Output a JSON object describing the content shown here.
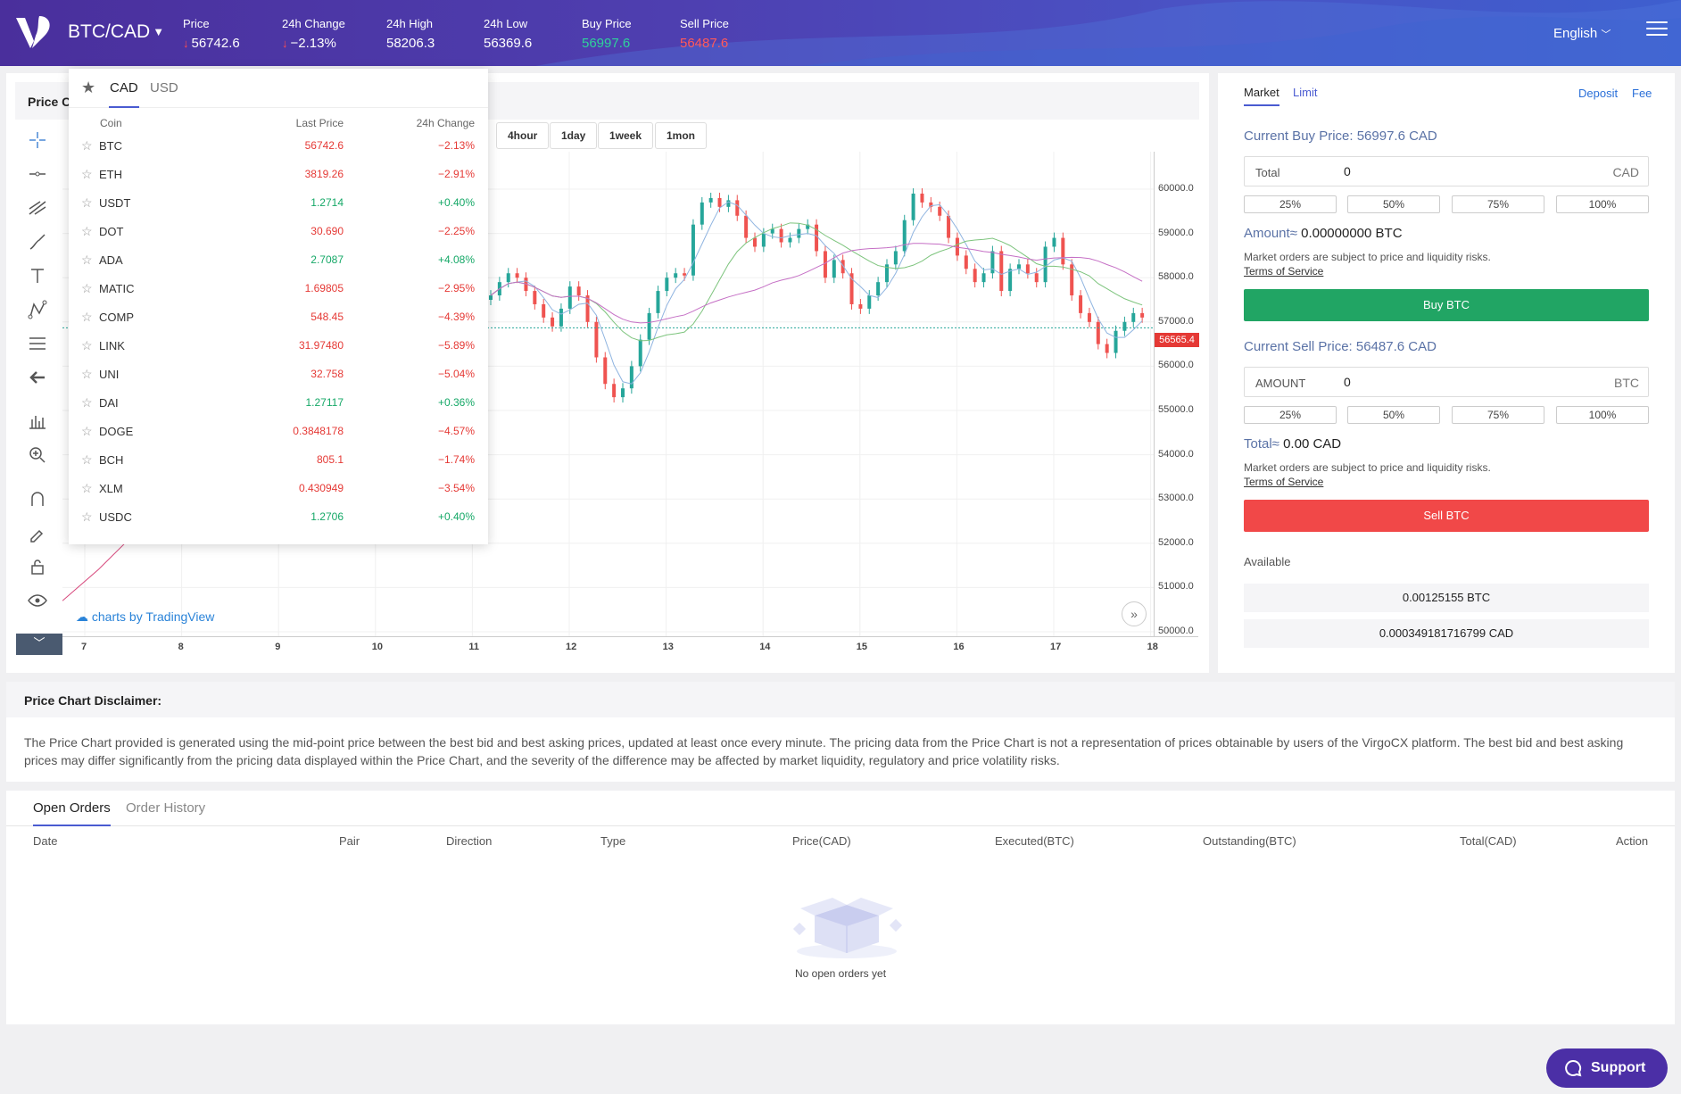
{
  "header": {
    "pair": "BTC/CAD",
    "stats": [
      {
        "label": "Price",
        "value": "56742.6",
        "arrow": true,
        "color": "white"
      },
      {
        "label": "24h Change",
        "value": "−2.13%",
        "arrow": true,
        "color": "white"
      },
      {
        "label": "24h High",
        "value": "58206.3",
        "arrow": false,
        "color": "white"
      },
      {
        "label": "24h Low",
        "value": "56369.6",
        "arrow": false,
        "color": "white"
      },
      {
        "label": "Buy Price",
        "value": "56997.6",
        "arrow": false,
        "color": "green"
      },
      {
        "label": "Sell Price",
        "value": "56487.6",
        "arrow": false,
        "color": "red"
      }
    ],
    "language": "English"
  },
  "chart": {
    "title": "Price C",
    "intervals": [
      "4hour",
      "1day",
      "1week",
      "1mon"
    ],
    "current_price_tag": "56565.4",
    "tradingview_label": "charts by TradingView"
  },
  "chart_data": {
    "type": "candlestick",
    "x_ticks": [
      "7",
      "8",
      "9",
      "10",
      "11",
      "12",
      "13",
      "14",
      "15",
      "16",
      "17",
      "18"
    ],
    "y_ticks": [
      "60000.0",
      "59000.0",
      "58000.0",
      "57000.0",
      "56000.0",
      "55000.0",
      "54000.0",
      "53000.0",
      "52000.0",
      "51000.0",
      "50000.0"
    ],
    "ylim": [
      50000,
      60000
    ],
    "current_price": 56565.4,
    "close_series": [
      57600,
      57900,
      58100,
      58000,
      57700,
      57400,
      57100,
      56900,
      57300,
      57800,
      57600,
      57000,
      56200,
      55600,
      55300,
      55500,
      56000,
      56600,
      57200,
      57700,
      58000,
      58100,
      58050,
      59200,
      59700,
      59800,
      59600,
      59750,
      59400,
      58900,
      58700,
      59000,
      59100,
      58800,
      58900,
      59100,
      59200,
      58600,
      58000,
      58400,
      58100,
      57400,
      57300,
      57600,
      57900,
      58300,
      58600,
      59300,
      59900,
      59700,
      59600,
      59400,
      58900,
      58500,
      58200,
      57900,
      58100,
      58600,
      57700,
      58200,
      58300,
      58100,
      57900,
      58700,
      58900,
      58300,
      57600,
      57200,
      57000,
      56500,
      56300,
      56800,
      57000,
      57200,
      57100
    ]
  },
  "coin_list": {
    "tabs": [
      "CAD",
      "USD"
    ],
    "active_tab": "CAD",
    "headers": {
      "coin": "Coin",
      "last_price": "Last Price",
      "change": "24h Change"
    },
    "rows": [
      {
        "coin": "BTC",
        "price": "56742.6",
        "change": "−2.13%",
        "dir": "red"
      },
      {
        "coin": "ETH",
        "price": "3819.26",
        "change": "−2.91%",
        "dir": "red"
      },
      {
        "coin": "USDT",
        "price": "1.2714",
        "change": "+0.40%",
        "dir": "green"
      },
      {
        "coin": "DOT",
        "price": "30.690",
        "change": "−2.25%",
        "dir": "red"
      },
      {
        "coin": "ADA",
        "price": "2.7087",
        "change": "+4.08%",
        "dir": "green"
      },
      {
        "coin": "MATIC",
        "price": "1.69805",
        "change": "−2.95%",
        "dir": "red"
      },
      {
        "coin": "COMP",
        "price": "548.45",
        "change": "−4.39%",
        "dir": "red"
      },
      {
        "coin": "LINK",
        "price": "31.97480",
        "change": "−5.89%",
        "dir": "red"
      },
      {
        "coin": "UNI",
        "price": "32.758",
        "change": "−5.04%",
        "dir": "red"
      },
      {
        "coin": "DAI",
        "price": "1.27117",
        "change": "+0.36%",
        "dir": "green"
      },
      {
        "coin": "DOGE",
        "price": "0.3848178",
        "change": "−4.57%",
        "dir": "red"
      },
      {
        "coin": "BCH",
        "price": "805.1",
        "change": "−1.74%",
        "dir": "red"
      },
      {
        "coin": "XLM",
        "price": "0.430949",
        "change": "−3.54%",
        "dir": "red"
      },
      {
        "coin": "USDC",
        "price": "1.2706",
        "change": "+0.40%",
        "dir": "green"
      }
    ]
  },
  "trade": {
    "tabs": {
      "market": "Market",
      "limit": "Limit"
    },
    "links": {
      "deposit": "Deposit",
      "fee": "Fee"
    },
    "buy": {
      "price_label": "Current Buy Price: 56997.6 CAD",
      "input_label": "Total",
      "input_value": "0",
      "input_unit": "CAD",
      "amount_label": "Amount≈",
      "amount_value": "0.00000000 BTC",
      "button": "Buy BTC"
    },
    "sell": {
      "price_label": "Current Sell Price: 56487.6 CAD",
      "input_label": "AMOUNT",
      "input_value": "0",
      "input_unit": "BTC",
      "total_label": "Total≈",
      "total_value": "0.00 CAD",
      "button": "Sell BTC"
    },
    "percents": [
      "25%",
      "50%",
      "75%",
      "100%"
    ],
    "risk_note": "Market orders are subject to price and liquidity risks.",
    "terms": "Terms of Service",
    "available_label": "Available",
    "available": [
      "0.00125155 BTC",
      "0.000349181716799 CAD"
    ]
  },
  "disclaimer": {
    "title": "Price Chart Disclaimer:",
    "text": "The Price Chart provided is generated using the mid-point price between the best bid and best asking prices, updated at least once every minute. The pricing data from the Price Chart is not a representation of prices obtainable by users of the VirgoCX platform. The best bid and best asking prices may differ significantly from the pricing data displayed within the Price Chart, and the severity of the difference may be affected by market liquidity, regulatory and price volatility risks."
  },
  "orders": {
    "tabs": {
      "open": "Open Orders",
      "history": "Order History"
    },
    "columns": [
      "Date",
      "Pair",
      "Direction",
      "Type",
      "Price(CAD)",
      "Executed(BTC)",
      "Outstanding(BTC)",
      "Total(CAD)",
      "Action"
    ],
    "empty": "No open orders yet"
  },
  "support": "Support",
  "colors": {
    "buy": "#21a564",
    "sell": "#f14848",
    "accent": "#4a5bd1",
    "header": "#4e3fb0"
  }
}
